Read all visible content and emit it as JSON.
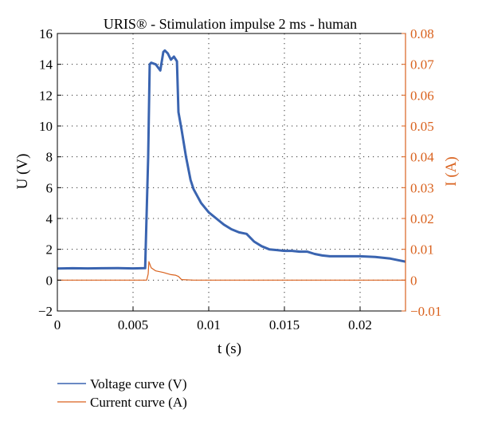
{
  "chart_data": {
    "type": "line",
    "title": "URIS® - Stimulation impulse 2 ms - human",
    "xlabel": "t (s)",
    "ylabel_left": "U (V)",
    "ylabel_right": "I (A)",
    "xlim": [
      0,
      0.023
    ],
    "ylim_left": [
      -2,
      16
    ],
    "ylim_right": [
      -0.01,
      0.08
    ],
    "xticks": [
      0,
      0.005,
      0.01,
      0.015,
      0.02
    ],
    "xtick_labels": [
      "0",
      "0.005",
      "0.01",
      "0.015",
      "0.02"
    ],
    "yticks_left": [
      -2,
      0,
      2,
      4,
      6,
      8,
      10,
      12,
      14,
      16
    ],
    "ytick_labels_left": [
      "−2",
      "0",
      "2",
      "4",
      "6",
      "8",
      "10",
      "12",
      "14",
      "16"
    ],
    "yticks_right": [
      -0.01,
      0,
      0.01,
      0.02,
      0.03,
      0.04,
      0.05,
      0.06,
      0.07,
      0.08
    ],
    "ytick_labels_right": [
      "−0.01",
      "0",
      "0.01",
      "0.02",
      "0.03",
      "0.04",
      "0.05",
      "0.06",
      "0.07",
      "0.08"
    ],
    "grid": true,
    "legend_position": "bottom-left, below plot",
    "series": [
      {
        "name": "Voltage curve (V)",
        "axis": "left",
        "color": "#3a64b0",
        "x": [
          0,
          0.001,
          0.002,
          0.003,
          0.004,
          0.005,
          0.0058,
          0.006,
          0.0061,
          0.0062,
          0.0065,
          0.0068,
          0.007,
          0.0071,
          0.0073,
          0.0075,
          0.0077,
          0.0079,
          0.008,
          0.0082,
          0.0085,
          0.0088,
          0.009,
          0.0095,
          0.01,
          0.0105,
          0.011,
          0.0115,
          0.012,
          0.0125,
          0.013,
          0.0135,
          0.014,
          0.0145,
          0.015,
          0.0155,
          0.016,
          0.0165,
          0.017,
          0.0175,
          0.018,
          0.019,
          0.02,
          0.021,
          0.022,
          0.023
        ],
        "values": [
          0.75,
          0.77,
          0.76,
          0.77,
          0.78,
          0.76,
          0.78,
          8.0,
          14.0,
          14.1,
          14.0,
          13.6,
          14.8,
          14.9,
          14.7,
          14.3,
          14.5,
          14.2,
          10.9,
          9.8,
          8.0,
          6.5,
          5.9,
          5.0,
          4.4,
          4.0,
          3.6,
          3.3,
          3.1,
          3.0,
          2.5,
          2.2,
          2.0,
          1.95,
          1.9,
          1.9,
          1.85,
          1.85,
          1.7,
          1.6,
          1.55,
          1.55,
          1.55,
          1.5,
          1.4,
          1.2
        ]
      },
      {
        "name": "Current curve (A)",
        "axis": "right",
        "color": "#d9621e",
        "x": [
          0,
          0.001,
          0.002,
          0.003,
          0.004,
          0.005,
          0.0059,
          0.006,
          0.00605,
          0.0062,
          0.0065,
          0.007,
          0.0072,
          0.0075,
          0.0078,
          0.008,
          0.0082,
          0.009,
          0.01,
          0.012,
          0.014,
          0.016,
          0.018,
          0.02,
          0.023
        ],
        "values": [
          0.0,
          0.0,
          0.0,
          0.0,
          0.0,
          0.0,
          0.0,
          0.002,
          0.006,
          0.004,
          0.003,
          0.0025,
          0.0022,
          0.0018,
          0.0016,
          0.0012,
          0.0002,
          0.0,
          0.0,
          0.0,
          0.0,
          0.0,
          0.0,
          0.0,
          0.0
        ]
      }
    ]
  }
}
